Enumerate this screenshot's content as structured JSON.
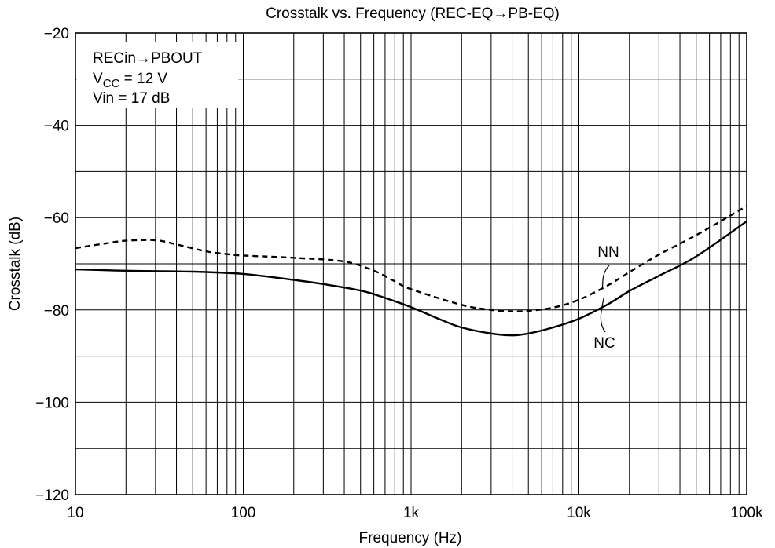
{
  "chart_data": {
    "type": "line",
    "title": "Crosstalk vs. Frequency (REC-EQ→PB-EQ)",
    "xlabel": "Frequency  (Hz)",
    "ylabel": "Crosstalk  (dB)",
    "x_scale": "log",
    "xlim": [
      10,
      100000
    ],
    "ylim": [
      -120,
      -20
    ],
    "grid": true,
    "x_ticks": [
      {
        "value": 10,
        "label": "10"
      },
      {
        "value": 100,
        "label": "100"
      },
      {
        "value": 1000,
        "label": "1k"
      },
      {
        "value": 10000,
        "label": "10k"
      },
      {
        "value": 100000,
        "label": "100k"
      }
    ],
    "y_ticks": [
      {
        "value": -20,
        "label": "−20"
      },
      {
        "value": -40,
        "label": "−40"
      },
      {
        "value": -60,
        "label": "−60"
      },
      {
        "value": -80,
        "label": "−80"
      },
      {
        "value": -100,
        "label": "−100"
      },
      {
        "value": -120,
        "label": "−120"
      }
    ],
    "annotation": {
      "line1": "RECin→PBOUT",
      "line2_prefix": "V",
      "line2_sub": "CC",
      "line2_suffix": " = 12 V",
      "line3": "Vin = 17 dB"
    },
    "series": [
      {
        "name": "NN",
        "style": "dashed",
        "color": "#000000",
        "x": [
          10,
          15,
          20,
          30,
          40,
          60,
          80,
          100,
          200,
          400,
          600,
          800,
          1000,
          2000,
          3000,
          4000,
          5000,
          7000,
          10000,
          15000,
          20000,
          30000,
          50000,
          100000
        ],
        "y": [
          -66.6,
          -65.6,
          -65,
          -64.9,
          -65.8,
          -67.3,
          -67.9,
          -68.2,
          -68.7,
          -69.5,
          -71.5,
          -73.8,
          -75.5,
          -78.9,
          -80,
          -80.3,
          -80.2,
          -79.5,
          -77.8,
          -74.6,
          -71.8,
          -68,
          -63.8,
          -57.5
        ]
      },
      {
        "name": "NC",
        "style": "solid",
        "color": "#000000",
        "x": [
          10,
          20,
          50,
          100,
          200,
          300,
          500,
          700,
          1000,
          1500,
          2000,
          3000,
          4000,
          5000,
          7000,
          10000,
          15000,
          20000,
          30000,
          50000,
          100000
        ],
        "y": [
          -71.2,
          -71.5,
          -71.7,
          -72.2,
          -73.5,
          -74.4,
          -75.8,
          -77.4,
          -79.4,
          -82.1,
          -83.8,
          -85.1,
          -85.5,
          -85.1,
          -83.8,
          -81.9,
          -78.7,
          -75.9,
          -72.6,
          -68.4,
          -60.8
        ]
      }
    ]
  }
}
